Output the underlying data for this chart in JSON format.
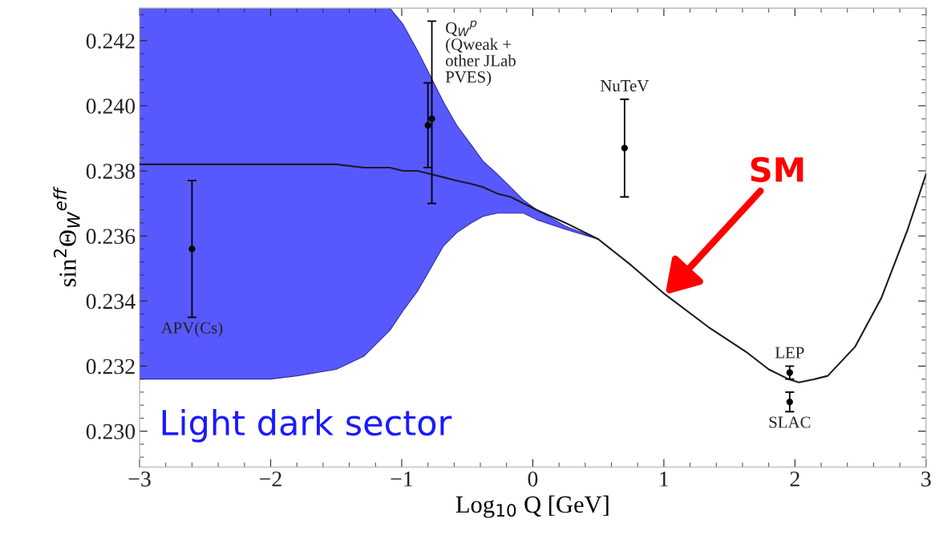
{
  "chart_data": {
    "type": "scatter",
    "xlabel": "Log$_{10}$ Q [GeV]",
    "ylabel": "sin$^{2}$Θ$_{W}$$^{eff}$",
    "xlim": [
      -3,
      3
    ],
    "xticks": [
      -3,
      -2,
      -1,
      0,
      1,
      2,
      3
    ],
    "ylim": [
      0.2289,
      0.243
    ],
    "yticks": [
      {
        "value": 0.23,
        "label": "0.230"
      },
      {
        "value": 0.232,
        "label": "0.232"
      },
      {
        "value": 0.234,
        "label": "0.234"
      },
      {
        "value": 0.236,
        "label": "0.236"
      },
      {
        "value": 0.238,
        "label": "0.238"
      },
      {
        "value": 0.24,
        "label": "0.240"
      },
      {
        "value": 0.242,
        "label": "0.242"
      }
    ],
    "grid": false,
    "series": [
      {
        "type": "line",
        "color": "#5858ff",
        "x": [
          -3,
          -2.5,
          -2,
          -1.8,
          -1.5,
          -1.29,
          -1.09,
          -0.99,
          -0.88,
          -0.78,
          -0.68,
          -0.58,
          -0.47,
          -0.38,
          -0.27,
          -0.17,
          -0.07,
          0.03,
          0.25,
          0.5
        ],
        "values": [
          null,
          null,
          null,
          null,
          null,
          null,
          null,
          null,
          null,
          null,
          null,
          null,
          null,
          null,
          null,
          null,
          null,
          null,
          null,
          null
        ],
        "upper": [
          0.243,
          0.243,
          0.243,
          0.243,
          0.243,
          0.243,
          0.243,
          0.2425,
          0.2417,
          0.2409,
          0.2401,
          0.2394,
          0.2388,
          0.2383,
          0.2379,
          0.2375,
          0.2371,
          0.2368,
          0.2363,
          0.2359
        ],
        "lower": [
          0.2316,
          0.2316,
          0.2316,
          0.2317,
          0.2319,
          0.2323,
          0.2331,
          0.2337,
          0.2343,
          0.235,
          0.2357,
          0.2361,
          0.2364,
          0.2366,
          0.2367,
          0.2367,
          0.2367,
          0.2365,
          0.2362,
          0.2359
        ]
      },
      {
        "name": "SM",
        "type": "line",
        "color": "#1a1a2a",
        "marker": "none",
        "x": [
          -3,
          -2.5,
          -2,
          -1.5,
          -1.29,
          -1.09,
          -0.99,
          -0.88,
          -0.78,
          -0.68,
          -0.58,
          -0.47,
          -0.38,
          -0.27,
          -0.17,
          -0.07,
          0.03,
          0.25,
          0.5,
          0.75,
          1.01,
          1.34,
          1.64,
          1.8,
          1.95,
          2.03,
          2.15,
          2.25,
          2.46,
          2.66,
          2.86,
          3
        ],
        "values": [
          0.2382,
          0.2382,
          0.2382,
          0.2382,
          0.2381,
          0.2381,
          0.238,
          0.238,
          0.2379,
          0.2378,
          0.2377,
          0.2376,
          0.2375,
          0.2373,
          0.2372,
          0.237,
          0.2368,
          0.2364,
          0.2359,
          0.2351,
          0.2342,
          0.2332,
          0.2324,
          0.2319,
          0.2316,
          0.2315,
          0.2316,
          0.2317,
          0.2326,
          0.2341,
          0.2362,
          0.2379
        ]
      },
      {
        "color": "#000000",
        "marker": "circle",
        "x": [
          -2.6,
          -0.8,
          0.7,
          1.96,
          1.96
        ],
        "values": [
          0.2356,
          0.2394,
          0.2387,
          0.2318,
          0.2309
        ],
        "errors": [
          0.0021,
          0.0013,
          0.0015,
          0.0002,
          0.0003
        ]
      },
      {
        "color": "#000000",
        "marker": "circle",
        "x": [
          -0.77
        ],
        "values": [
          0.2396
        ],
        "errors": [
          [
            0.237,
            0.2426
          ]
        ]
      }
    ],
    "annotations": [
      "Light dark sector",
      {
        "text": "APV(Cs)",
        "x": -2.6,
        "y": 0.2335
      },
      {
        "text": "Q$_{W}$$^{p}$\n(Qweak +\nother JLab\nPVES)",
        "x": -0.77,
        "y": 0.2396
      },
      {
        "text": "NuTeV",
        "x": 0.7,
        "y": 0.2402
      },
      {
        "text": "LEP",
        "x": 1.96,
        "y": 0.232
      },
      {
        "text": "SLAC",
        "x": 1.96,
        "y": 0.2306
      }
    ]
  }
}
